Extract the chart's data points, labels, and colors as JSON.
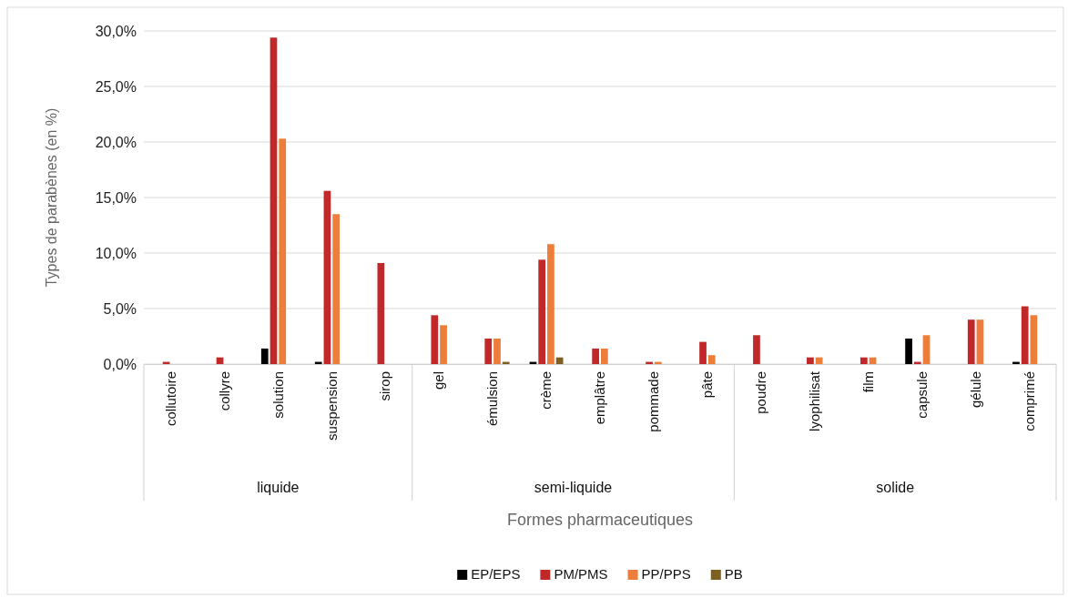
{
  "chart_data": {
    "type": "bar",
    "xlabel": "Formes pharmaceutiques",
    "ylabel": "Types de parabènes (en %)",
    "categories": [
      "collutoire",
      "collyre",
      "solution",
      "suspension",
      "sirop",
      "gel",
      "émulsion",
      "crème",
      "emplâtre",
      "pommade",
      "pâte",
      "poudre",
      "lyophilisat",
      "film",
      "capsule",
      "gélule",
      "comprimé"
    ],
    "series": [
      {
        "name": "EP/EPS",
        "color": "#000000",
        "values": [
          null,
          null,
          1.4,
          0.2,
          null,
          null,
          null,
          0.2,
          null,
          null,
          null,
          null,
          null,
          null,
          2.3,
          null,
          0.2
        ]
      },
      {
        "name": "PM/PMS",
        "color": "#c0282a",
        "values": [
          0.2,
          0.6,
          29.4,
          15.6,
          9.1,
          4.4,
          2.3,
          9.4,
          1.4,
          0.2,
          2.0,
          2.6,
          0.6,
          0.6,
          0.2,
          4.0,
          5.2
        ]
      },
      {
        "name": "PP/PPS",
        "color": "#ed7d3a",
        "values": [
          null,
          null,
          20.3,
          13.5,
          null,
          3.5,
          2.3,
          10.8,
          1.4,
          0.2,
          0.8,
          null,
          0.6,
          0.6,
          2.6,
          4.0,
          4.4
        ]
      },
      {
        "name": "PB",
        "color": "#7f5f1f",
        "values": [
          null,
          null,
          null,
          null,
          null,
          null,
          0.2,
          0.6,
          null,
          null,
          null,
          null,
          null,
          null,
          null,
          null,
          null
        ]
      }
    ],
    "ylim": [
      0,
      30
    ],
    "yticks": [
      {
        "value": 0,
        "label": "0,0%"
      },
      {
        "value": 5,
        "label": "5,0%"
      },
      {
        "value": 10,
        "label": "10,0%"
      },
      {
        "value": 15,
        "label": "15,0%"
      },
      {
        "value": 20,
        "label": "20,0%"
      },
      {
        "value": 25,
        "label": "25,0%"
      },
      {
        "value": 30,
        "label": "30,0%"
      }
    ],
    "annotations": [
      "liquide",
      "semi-liquide",
      "solide"
    ],
    "grid": "y",
    "legend": "bottom"
  }
}
